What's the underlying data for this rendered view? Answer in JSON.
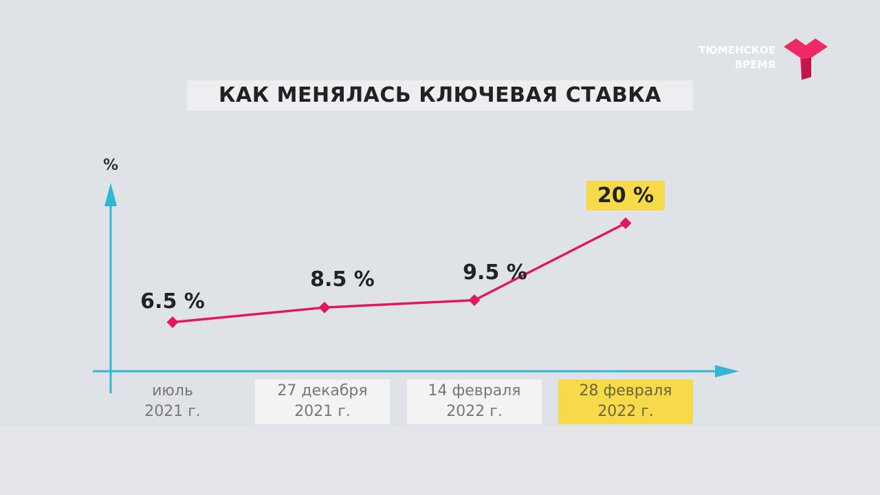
{
  "logo": {
    "line1": "ТЮМЕНСКОЕ",
    "line2": "ВРЕМЯ"
  },
  "chart_data": {
    "type": "line",
    "title": "КАК МЕНЯЛАСЬ КЛЮЧЕВАЯ СТАВКА",
    "ylabel": "%",
    "xlabel": "",
    "categories": [
      "июль 2021 г.",
      "27 декабря 2021 г.",
      "14 февраля 2022 г.",
      "28 февраля 2022 г."
    ],
    "category_lines": [
      [
        "июль",
        "2021 г."
      ],
      [
        "27 декабря",
        "2021 г."
      ],
      [
        "14 февраля",
        "2022 г."
      ],
      [
        "28 февраля",
        "2022 г."
      ]
    ],
    "values": [
      6.5,
      8.5,
      9.5,
      20
    ],
    "data_labels": [
      "6.5 %",
      "8.5 %",
      "9.5 %",
      "20 %"
    ],
    "highlighted_index": 3,
    "ylim": [
      0,
      25
    ],
    "grid": false,
    "colors": {
      "line": "#e0185f",
      "axis": "#33b5d4",
      "highlight": "#f6da49",
      "logo": "#ee2a64"
    }
  }
}
